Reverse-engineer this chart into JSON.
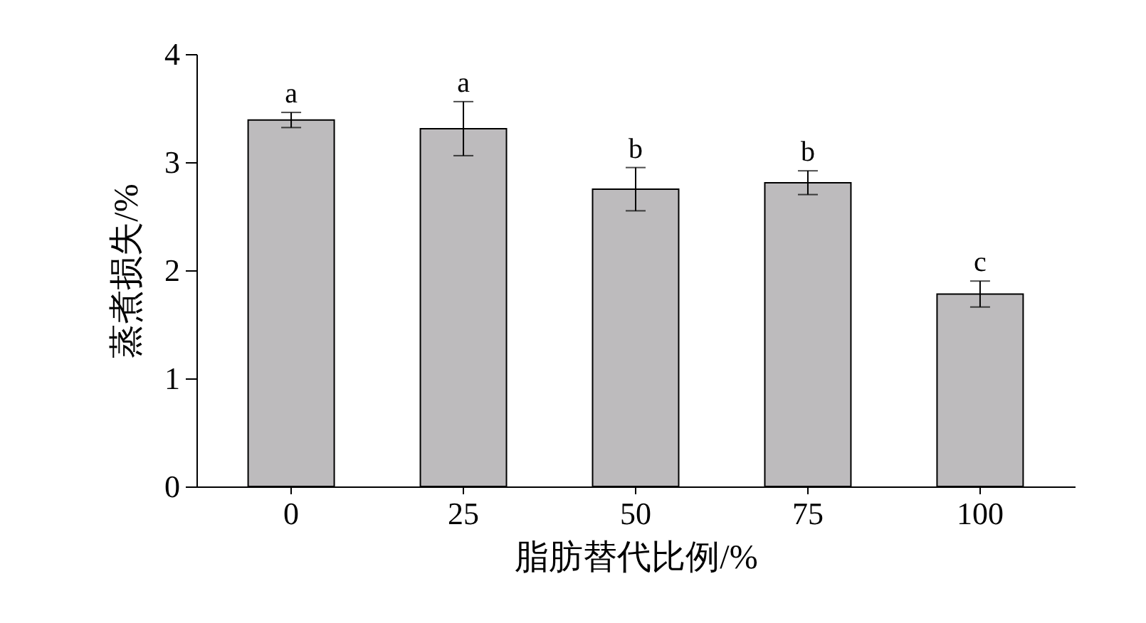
{
  "chart_data": {
    "type": "bar",
    "xlabel": "脂肪替代比例/%",
    "ylabel": "蒸煮损失/%",
    "categories": [
      "0",
      "25",
      "50",
      "75",
      "100"
    ],
    "values": [
      3.39,
      3.31,
      2.75,
      2.81,
      1.78
    ],
    "errors": [
      0.07,
      0.25,
      0.2,
      0.11,
      0.12
    ],
    "color": "#bdbbbd",
    "ylim": [
      0,
      4
    ],
    "yticks": [
      0,
      1,
      2,
      3,
      4
    ],
    "grid": false,
    "annotations": [
      {
        "text": "a",
        "x": "0",
        "y": 3.46
      },
      {
        "text": "a",
        "x": "25",
        "y": 3.56
      },
      {
        "text": "b",
        "x": "50",
        "y": 2.95
      },
      {
        "text": "b",
        "x": "75",
        "y": 2.92
      },
      {
        "text": "c",
        "x": "100",
        "y": 1.9
      }
    ]
  }
}
